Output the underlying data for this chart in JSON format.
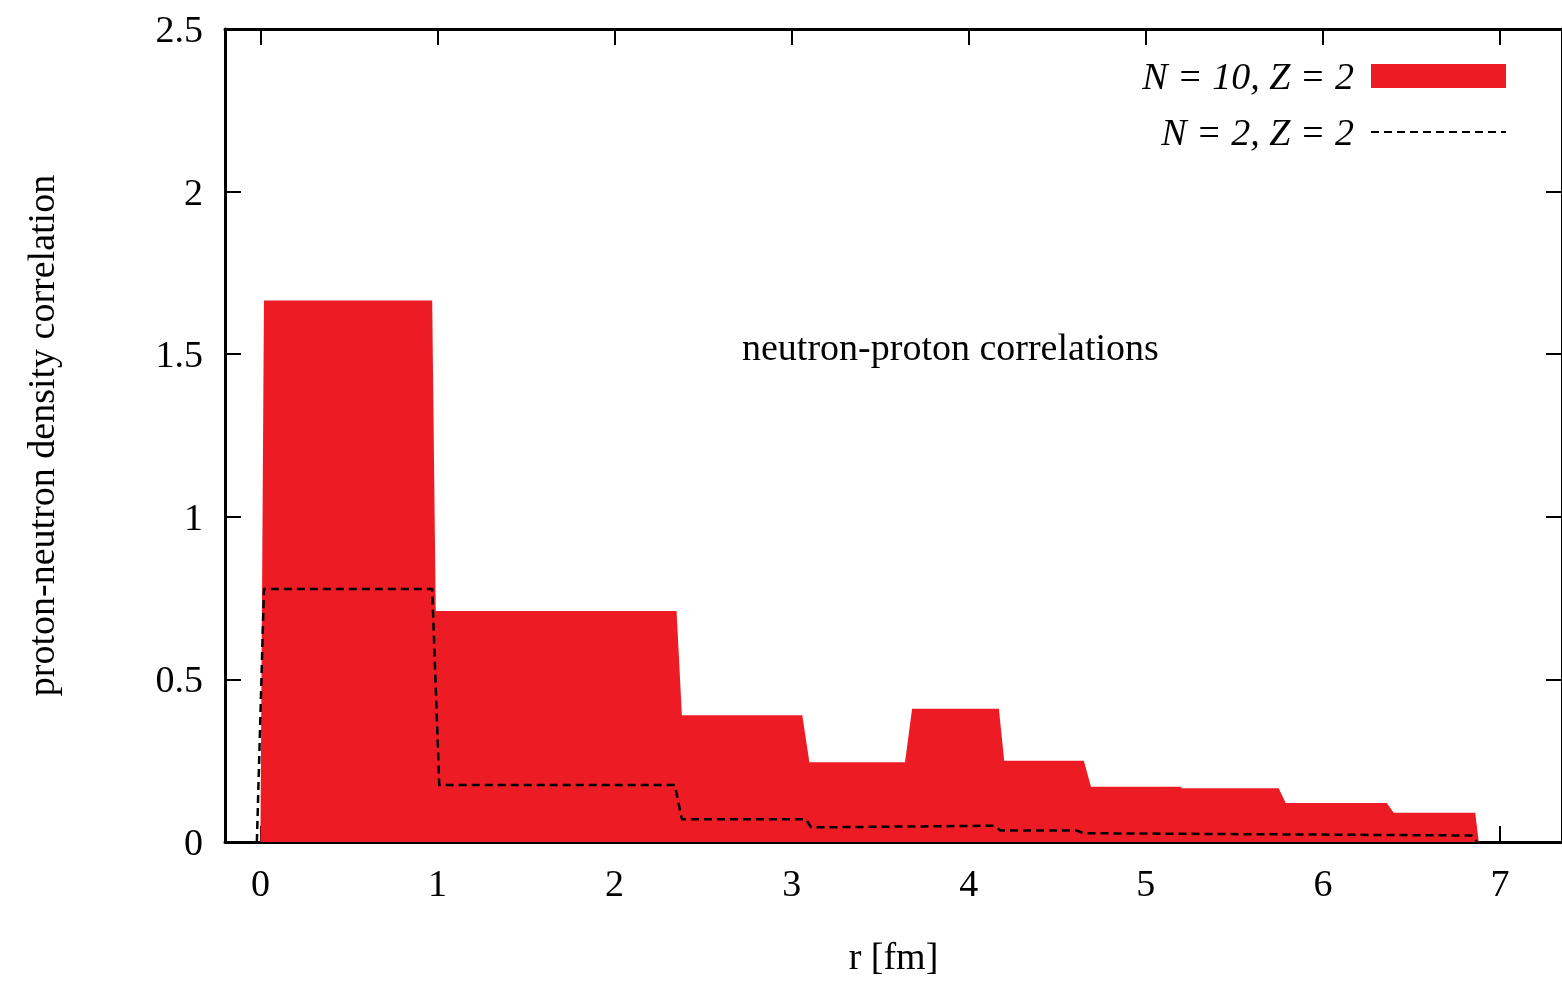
{
  "chart_data": {
    "type": "area",
    "xlabel": "r [fm]",
    "ylabel": "proton-neutron density correlation",
    "annotations": [
      "neutron-proton correlations"
    ],
    "xlim": [
      -0.2,
      7.35
    ],
    "xticks": [
      0,
      1,
      2,
      3,
      4,
      5,
      6,
      7
    ],
    "ylim": [
      0,
      2.5
    ],
    "yticks": [
      0,
      0.5,
      1,
      1.5,
      2,
      2.5
    ],
    "grid": false,
    "legend": "top right",
    "marker": "none",
    "series": [
      {
        "name": "N = 10, Z = 2",
        "color": "#ed1c24",
        "x": [
          0,
          0.02,
          0.97,
          0.99,
          2.35,
          2.38,
          3.06,
          3.1,
          3.64,
          3.68,
          4.17,
          4.2,
          4.65,
          4.69,
          5.2,
          5.2,
          5.75,
          5.79,
          6.36,
          6.4,
          6.86,
          6.88
        ],
        "values": [
          0,
          1.665,
          1.665,
          0.71,
          0.71,
          0.39,
          0.39,
          0.245,
          0.245,
          0.41,
          0.41,
          0.25,
          0.25,
          0.17,
          0.17,
          0.165,
          0.165,
          0.12,
          0.12,
          0.09,
          0.09,
          0
        ]
      },
      {
        "name": "N = 2, Z = 2",
        "type": "line",
        "line_style": "dashed",
        "color": "#000000",
        "x": [
          -0.02,
          0.02,
          0.97,
          1.01,
          2.34,
          2.38,
          3.08,
          3.11,
          4.14,
          4.18,
          4.61,
          4.65,
          6.84,
          6.87
        ],
        "values": [
          0,
          0.778,
          0.778,
          0.175,
          0.175,
          0.07,
          0.07,
          0.045,
          0.05,
          0.035,
          0.035,
          0.027,
          0.02,
          0
        ]
      }
    ]
  }
}
